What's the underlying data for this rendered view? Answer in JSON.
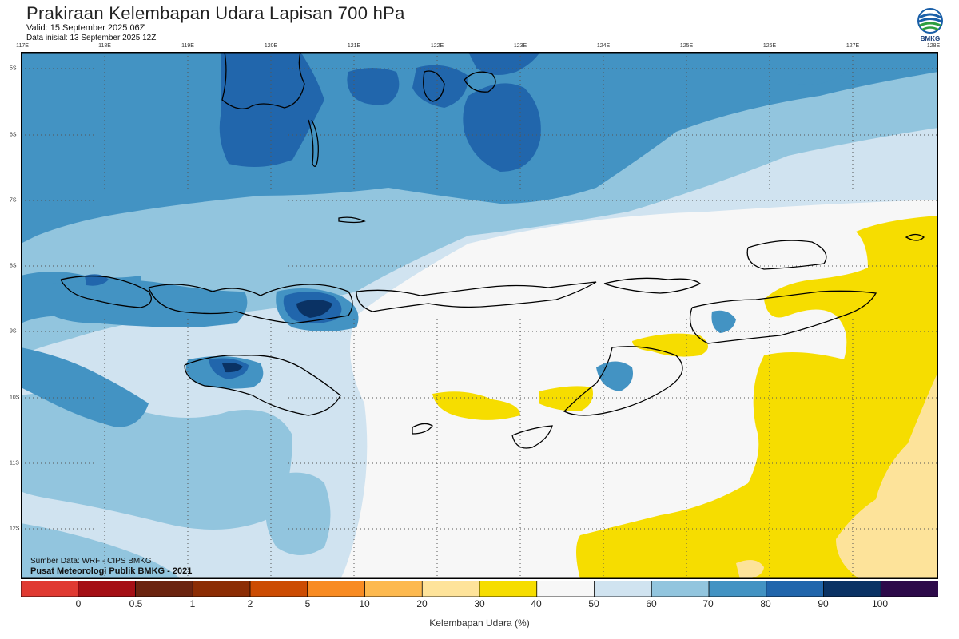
{
  "title": "Prakiraan Kelembapan Udara Lapisan 700 hPa",
  "valid": "Valid: 15 September 2025 06Z",
  "initial": "Data inisial: 13 September 2025 12Z",
  "logo_text": "BMKG",
  "lon_labels": [
    "117E",
    "118E",
    "119E",
    "120E",
    "121E",
    "122E",
    "123E",
    "124E",
    "125E",
    "126E",
    "127E",
    "128E"
  ],
  "lat_labels": [
    "5S",
    "6S",
    "7S",
    "8S",
    "9S",
    "10S",
    "11S",
    "12S"
  ],
  "source": "Sumber Data: WRF - CIPS BMKG",
  "publisher": "Pusat Meteorologi Publik BMKG - 2021",
  "colorbar": {
    "title": "Kelembapan Udara (%)",
    "ticks": [
      "0",
      "0.5",
      "1",
      "2",
      "5",
      "10",
      "20",
      "30",
      "40",
      "50",
      "60",
      "70",
      "80",
      "90",
      "100"
    ],
    "colors": [
      "#e03a32",
      "#a50f15",
      "#6b2410",
      "#8c2d04",
      "#cc4c02",
      "#f88b22",
      "#fdb94f",
      "#fee39a",
      "#f6dd00",
      "#f7f7f7",
      "#d0e3f0",
      "#92c5de",
      "#4393c3",
      "#2166ac",
      "#0a3264",
      "#2d0a4a"
    ]
  },
  "map_colors": {
    "c40": "#f6dd00",
    "c30": "#fde39a",
    "c50": "#f7f7f7",
    "c60": "#d0e3f0",
    "c70": "#92c5de",
    "c80": "#4393c3",
    "c90": "#2166ac",
    "c100": "#0a3264"
  }
}
